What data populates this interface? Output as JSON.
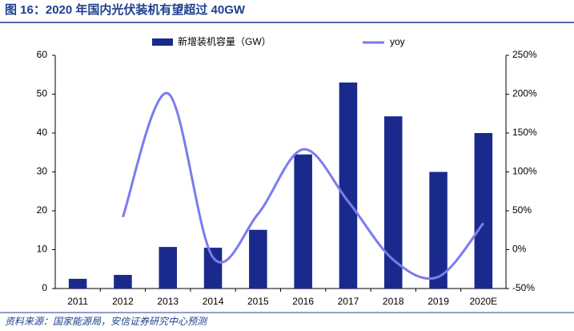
{
  "chart_data": {
    "type": "bar-line",
    "title": "图 16：2020 年国内光伏装机有望超过 40GW",
    "source": "资料来源：国家能源局，安信证券研究中心预测",
    "categories": [
      "2011",
      "2012",
      "2013",
      "2014",
      "2015",
      "2016",
      "2017",
      "2018",
      "2019",
      "2020E"
    ],
    "series": [
      {
        "name": "新增装机容量（GW）",
        "color": "#1a2a8c",
        "type": "bar",
        "values": [
          2.5,
          3.5,
          10.7,
          10.5,
          15.1,
          34.5,
          53,
          44.3,
          30,
          40
        ]
      },
      {
        "name": "yoy",
        "color": "#7b7bef",
        "type": "line",
        "axis": "y2",
        "values": [
          null,
          42,
          201,
          -10,
          46,
          129,
          62,
          -13,
          -35,
          34
        ]
      }
    ],
    "ylim": [
      0,
      60
    ],
    "yticks": [
      0,
      10,
      20,
      30,
      40,
      50,
      60
    ],
    "y2lim": [
      -50,
      250
    ],
    "y2ticks": [
      {
        "value": -50,
        "label": "-50%"
      },
      {
        "value": 0,
        "label": "0%"
      },
      {
        "value": 50,
        "label": "50%"
      },
      {
        "value": 100,
        "label": "100%"
      },
      {
        "value": 150,
        "label": "150%"
      },
      {
        "value": 200,
        "label": "200%"
      },
      {
        "value": 250,
        "label": "250%"
      }
    ]
  }
}
